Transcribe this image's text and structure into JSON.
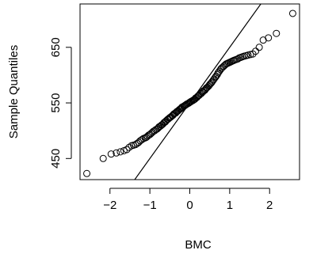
{
  "chart_data": {
    "type": "scatter",
    "title": "",
    "xlabel": "BMC",
    "ylabel": "Sample Quantiles",
    "xlim": [
      -2.75,
      2.75
    ],
    "ylim": [
      412,
      728
    ],
    "x_ticks": [
      -2,
      -1,
      0,
      1,
      2
    ],
    "x_tick_labels": [
      "−2",
      "−1",
      "0",
      "1",
      "2"
    ],
    "y_ticks": [
      450,
      550,
      650
    ],
    "y_tick_labels": [
      "450",
      "550",
      "650"
    ],
    "grid": false,
    "legend": "none",
    "point_style": "open circle",
    "reference_line": {
      "intercept": 550,
      "slope": 100
    },
    "points": [
      [
        -2.58,
        423
      ],
      [
        -2.17,
        450
      ],
      [
        -1.97,
        458
      ],
      [
        -1.84,
        460
      ],
      [
        -1.74,
        462
      ],
      [
        -1.65,
        464
      ],
      [
        -1.58,
        466
      ],
      [
        -1.52,
        470
      ],
      [
        -1.46,
        473
      ],
      [
        -1.41,
        474
      ],
      [
        -1.36,
        475
      ],
      [
        -1.32,
        477
      ],
      [
        -1.28,
        479
      ],
      [
        -1.24,
        482
      ],
      [
        -1.2,
        484
      ],
      [
        -1.16,
        486
      ],
      [
        -1.12,
        487
      ],
      [
        -1.09,
        488
      ],
      [
        -1.06,
        490
      ],
      [
        -1.03,
        492
      ],
      [
        -1.0,
        493
      ],
      [
        -0.97,
        495
      ],
      [
        -0.94,
        497
      ],
      [
        -0.91,
        499
      ],
      [
        -0.88,
        500
      ],
      [
        -0.85,
        502
      ],
      [
        -0.82,
        503
      ],
      [
        -0.79,
        505
      ],
      [
        -0.77,
        507
      ],
      [
        -0.74,
        508
      ],
      [
        -0.71,
        510
      ],
      [
        -0.69,
        511
      ],
      [
        -0.66,
        513
      ],
      [
        -0.64,
        515
      ],
      [
        -0.61,
        516
      ],
      [
        -0.59,
        518
      ],
      [
        -0.56,
        520
      ],
      [
        -0.54,
        521
      ],
      [
        -0.51,
        523
      ],
      [
        -0.49,
        524
      ],
      [
        -0.47,
        525
      ],
      [
        -0.44,
        527
      ],
      [
        -0.42,
        528
      ],
      [
        -0.4,
        530
      ],
      [
        -0.38,
        531
      ],
      [
        -0.35,
        532
      ],
      [
        -0.33,
        534
      ],
      [
        -0.31,
        535
      ],
      [
        -0.29,
        536
      ],
      [
        -0.26,
        538
      ],
      [
        -0.24,
        539
      ],
      [
        -0.22,
        540
      ],
      [
        -0.2,
        542
      ],
      [
        -0.18,
        543
      ],
      [
        -0.15,
        544
      ],
      [
        -0.13,
        545
      ],
      [
        -0.11,
        546
      ],
      [
        -0.09,
        547
      ],
      [
        -0.07,
        548
      ],
      [
        -0.04,
        549
      ],
      [
        -0.02,
        550
      ],
      [
        0.0,
        551
      ],
      [
        0.02,
        552
      ],
      [
        0.04,
        553
      ],
      [
        0.07,
        554
      ],
      [
        0.09,
        555
      ],
      [
        0.11,
        556
      ],
      [
        0.13,
        557
      ],
      [
        0.15,
        559
      ],
      [
        0.18,
        560
      ],
      [
        0.2,
        562
      ],
      [
        0.22,
        563
      ],
      [
        0.24,
        564
      ],
      [
        0.26,
        566
      ],
      [
        0.29,
        567
      ],
      [
        0.31,
        569
      ],
      [
        0.33,
        570
      ],
      [
        0.35,
        572
      ],
      [
        0.38,
        573
      ],
      [
        0.4,
        575
      ],
      [
        0.42,
        577
      ],
      [
        0.44,
        578
      ],
      [
        0.47,
        580
      ],
      [
        0.49,
        582
      ],
      [
        0.51,
        584
      ],
      [
        0.54,
        586
      ],
      [
        0.56,
        588
      ],
      [
        0.59,
        591
      ],
      [
        0.61,
        593
      ],
      [
        0.64,
        596
      ],
      [
        0.66,
        598
      ],
      [
        0.69,
        601
      ],
      [
        0.71,
        604
      ],
      [
        0.74,
        607
      ],
      [
        0.77,
        610
      ],
      [
        0.79,
        612
      ],
      [
        0.82,
        614
      ],
      [
        0.85,
        616
      ],
      [
        0.88,
        618
      ],
      [
        0.91,
        620
      ],
      [
        0.94,
        621
      ],
      [
        0.97,
        622
      ],
      [
        1.0,
        623
      ],
      [
        1.03,
        624
      ],
      [
        1.06,
        625
      ],
      [
        1.09,
        626
      ],
      [
        1.12,
        627
      ],
      [
        1.16,
        628
      ],
      [
        1.2,
        629
      ],
      [
        1.24,
        631
      ],
      [
        1.28,
        632
      ],
      [
        1.32,
        633
      ],
      [
        1.36,
        634
      ],
      [
        1.41,
        635
      ],
      [
        1.46,
        636
      ],
      [
        1.52,
        637
      ],
      [
        1.58,
        638
      ],
      [
        1.65,
        643
      ],
      [
        1.74,
        650
      ],
      [
        1.84,
        663
      ],
      [
        1.97,
        667
      ],
      [
        2.17,
        675
      ],
      [
        2.58,
        711
      ]
    ]
  }
}
